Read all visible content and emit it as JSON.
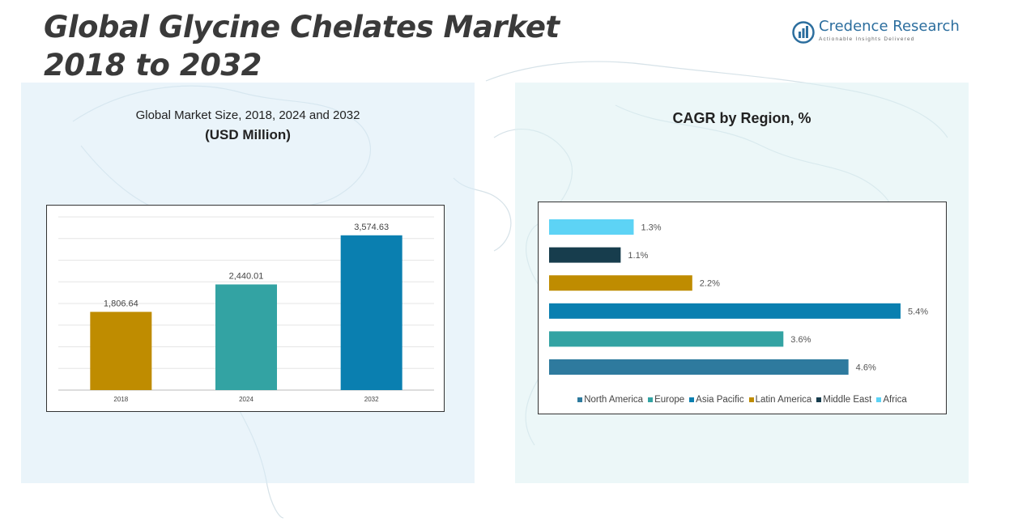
{
  "title": {
    "line1": "Global Glycine Chelates Market",
    "line2": "2018 to 2032"
  },
  "logo": {
    "name": "Credence Research",
    "tagline": "Actionable Insights Delivered",
    "color": "#2c6e9e"
  },
  "left_panel": {
    "title": "Global Market Size, 2018, 2024 and 2032",
    "subtitle": "(USD Million)"
  },
  "right_panel": {
    "title": "CAGR by Region, %"
  },
  "chart_data": [
    {
      "type": "bar",
      "title": "Global Market Size, 2018, 2024 and 2032",
      "subtitle": "(USD Million)",
      "categories": [
        "2018",
        "2024",
        "2032"
      ],
      "values": [
        1806.64,
        2440.01,
        3574.63
      ],
      "value_labels": [
        "1,806.64",
        "2,440.01",
        "3,574.63"
      ],
      "colors": [
        "#bf8c00",
        "#33a3a3",
        "#0a7fb0"
      ],
      "ylim": [
        0,
        4000
      ],
      "grid": true
    },
    {
      "type": "bar",
      "orientation": "horizontal",
      "title": "CAGR by Region, %",
      "categories": [
        "Africa",
        "Middle East",
        "Latin America",
        "Asia Pacific",
        "Europe",
        "North America"
      ],
      "values": [
        1.3,
        1.1,
        2.2,
        5.4,
        3.6,
        4.6
      ],
      "value_labels": [
        "1.3%",
        "1.1%",
        "2.2%",
        "5.4%",
        "3.6%",
        "4.6%"
      ],
      "colors": [
        "#5dd3f5",
        "#173d4d",
        "#bf8c00",
        "#0a7fb0",
        "#33a3a3",
        "#2e7a9e"
      ],
      "xlim": [
        0,
        5.5
      ],
      "legend": {
        "position": "bottom",
        "items": [
          {
            "label": "North America",
            "color": "#2e7a9e"
          },
          {
            "label": "Europe",
            "color": "#33a3a3"
          },
          {
            "label": "Asia Pacific",
            "color": "#0a7fb0"
          },
          {
            "label": "Latin America",
            "color": "#bf8c00"
          },
          {
            "label": "Middle East",
            "color": "#173d4d"
          },
          {
            "label": "Africa",
            "color": "#5dd3f5"
          }
        ]
      }
    }
  ]
}
